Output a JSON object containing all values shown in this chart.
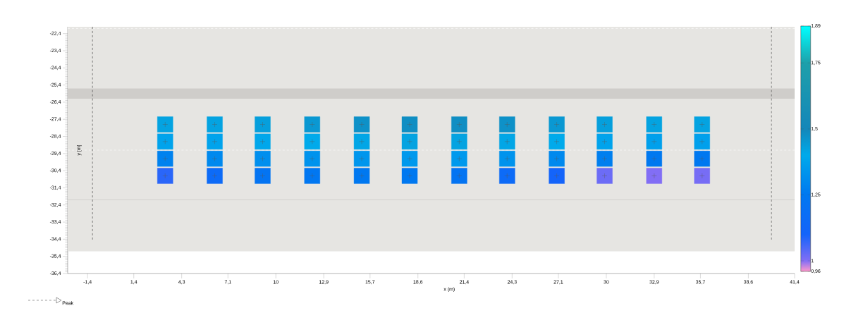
{
  "chart_data": {
    "type": "scatter",
    "xlabel": "x (m)",
    "ylabel": "y [m]",
    "x": [
      3.3,
      6.3,
      9.2,
      12.2,
      15.2,
      18.1,
      21.1,
      24.0,
      27.0,
      29.9,
      32.9,
      35.8,
      3.3,
      6.3,
      9.2,
      12.2,
      15.2,
      18.1,
      21.1,
      24.0,
      27.0,
      29.9,
      32.9,
      35.8,
      3.3,
      6.3,
      9.2,
      12.2,
      15.2,
      18.1,
      21.1,
      24.0,
      27.0,
      29.9,
      32.9,
      35.8,
      3.3,
      6.3,
      9.2,
      12.2,
      15.2,
      18.1,
      21.1,
      24.0,
      27.0,
      29.9,
      32.9,
      35.8
    ],
    "values": [
      -27.7,
      -27.7,
      -27.7,
      -27.7,
      -27.7,
      -27.7,
      -27.7,
      -27.7,
      -27.7,
      -27.7,
      -27.7,
      -27.7,
      -28.7,
      -28.7,
      -28.7,
      -28.7,
      -28.7,
      -28.7,
      -28.7,
      -28.7,
      -28.7,
      -28.7,
      -28.7,
      -28.7,
      -29.7,
      -29.7,
      -29.7,
      -29.7,
      -29.7,
      -29.7,
      -29.7,
      -29.7,
      -29.7,
      -29.7,
      -29.7,
      -29.7,
      -30.7,
      -30.7,
      -30.7,
      -30.7,
      -30.7,
      -30.7,
      -30.7,
      -30.7,
      -30.7,
      -30.7,
      -30.7,
      -30.7
    ],
    "cvalues": [
      1.42,
      1.42,
      1.43,
      1.45,
      1.47,
      1.48,
      1.48,
      1.47,
      1.45,
      1.43,
      1.42,
      1.42,
      1.38,
      1.38,
      1.39,
      1.4,
      1.41,
      1.42,
      1.42,
      1.41,
      1.4,
      1.38,
      1.37,
      1.37,
      1.28,
      1.3,
      1.32,
      1.33,
      1.34,
      1.35,
      1.35,
      1.33,
      1.3,
      1.27,
      1.25,
      1.25,
      1.08,
      1.15,
      1.22,
      1.24,
      1.25,
      1.25,
      1.22,
      1.15,
      1.1,
      1.02,
      1.0,
      1.01
    ],
    "marker": "square",
    "xlim": [
      -2.6,
      41.4
    ],
    "xticks": [
      {
        "value": -1.4,
        "label": "-1,4"
      },
      {
        "value": 1.4,
        "label": "1,4"
      },
      {
        "value": 4.3,
        "label": "4,3"
      },
      {
        "value": 7.1,
        "label": "7,1"
      },
      10,
      {
        "value": 12.9,
        "label": "12,9"
      },
      {
        "value": 15.7,
        "label": "15,7"
      },
      {
        "value": 18.6,
        "label": "18,6"
      },
      {
        "value": 21.4,
        "label": "21,4"
      },
      {
        "value": 24.3,
        "label": "24,3"
      },
      {
        "value": 27.1,
        "label": "27,1"
      },
      30,
      {
        "value": 32.9,
        "label": "32,9"
      },
      {
        "value": 35.7,
        "label": "35,7"
      },
      {
        "value": 38.6,
        "label": "38,6"
      },
      {
        "value": 41.4,
        "label": "41,4"
      }
    ],
    "ylim": [
      -36.4,
      -22.0
    ],
    "yticks": [
      {
        "value": -36.4,
        "label": "-36,4"
      },
      {
        "value": -35.4,
        "label": "-35,4"
      },
      {
        "value": -34.4,
        "label": "-34,4"
      },
      {
        "value": -33.4,
        "label": "-33,4"
      },
      {
        "value": -32.4,
        "label": "-32,4"
      },
      {
        "value": -31.4,
        "label": "-31,4"
      },
      {
        "value": -30.4,
        "label": "-30,4"
      },
      {
        "value": -29.4,
        "label": "-29,4"
      },
      {
        "value": -28.4,
        "label": "-28,4"
      },
      {
        "value": -27.4,
        "label": "-27,4"
      },
      {
        "value": -26.4,
        "label": "-26,4"
      },
      {
        "value": -25.4,
        "label": "-25,4"
      },
      {
        "value": -24.4,
        "label": "-24,4"
      },
      {
        "value": -23.4,
        "label": "-23,4"
      },
      {
        "value": -22.4,
        "label": "-22,4"
      }
    ],
    "clim": [
      0.96,
      1.89
    ],
    "cticks": [
      {
        "value": 0.96,
        "label": "0,96"
      },
      1,
      {
        "value": 1.25,
        "label": "1,25"
      },
      {
        "value": 1.5,
        "label": "1,5"
      },
      {
        "value": 1.75,
        "label": "1,75"
      },
      {
        "value": 1.89,
        "label": "1,89"
      }
    ],
    "bands": [
      {
        "axis": "y",
        "from": -35.1,
        "to": -22.0,
        "color": "#e6e5e2"
      },
      {
        "axis": "y",
        "from": -26.2,
        "to": -25.6,
        "color": "#cfcdca"
      }
    ],
    "ref_lines": [
      {
        "axis": "y",
        "value": -32.1,
        "color": "#c4c2bf",
        "line_style": "solid"
      },
      {
        "axis": "y",
        "value": -22.1,
        "color": "#ffffff",
        "line_style": "dashed"
      },
      {
        "axis": "y",
        "value": -29.2,
        "color": "#ffffff",
        "line_style": "dashed"
      },
      {
        "axis": "x",
        "value": -1.1,
        "color": "#333333",
        "line_style": "dashed",
        "label": "Peak"
      },
      {
        "axis": "x",
        "value": 40.0,
        "color": "#333333",
        "line_style": "dashed"
      }
    ],
    "legend": "bottom left"
  }
}
